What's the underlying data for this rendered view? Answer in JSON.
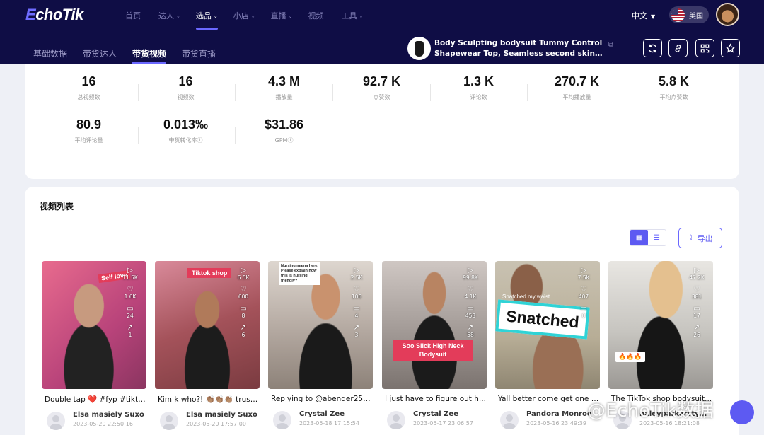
{
  "app": {
    "logo_prefix": "E",
    "logo_rest": "choTik"
  },
  "nav": [
    {
      "label": "首页",
      "caret": ""
    },
    {
      "label": "达人",
      "caret": "⌄"
    },
    {
      "label": "选品",
      "caret": "⌄",
      "active": true
    },
    {
      "label": "小店",
      "caret": "⌄"
    },
    {
      "label": "直播",
      "caret": "⌄"
    },
    {
      "label": "视频",
      "caret": ""
    },
    {
      "label": "工具",
      "caret": "⌄"
    }
  ],
  "header": {
    "language": "中文",
    "region": "美国"
  },
  "subnav": [
    {
      "label": "基础数据"
    },
    {
      "label": "带货达人"
    },
    {
      "label": "带货视频",
      "active": true
    },
    {
      "label": "带货直播"
    }
  ],
  "product": {
    "title_line1": "Body Sculpting bodysuit Tummy Control",
    "title_line2": "Shapewear Top, Seamless second skin high..."
  },
  "toolbar_icons": [
    "refresh-icon",
    "link-icon",
    "qrcode-icon",
    "star-icon"
  ],
  "stats": [
    {
      "value": "16",
      "label": "总视频数"
    },
    {
      "value": "16",
      "label": "视频数"
    },
    {
      "value": "4.3 M",
      "label": "播放量"
    },
    {
      "value": "92.7 K",
      "label": "点赞数"
    },
    {
      "value": "1.3 K",
      "label": "评论数"
    },
    {
      "value": "270.7 K",
      "label": "平均播放量"
    },
    {
      "value": "5.8 K",
      "label": "平均点赞数"
    },
    {
      "value": "80.9",
      "label": "平均评论量"
    },
    {
      "value": "0.013‰",
      "label": "带货转化率ⓘ"
    },
    {
      "value": "$31.86",
      "label": "GPMⓘ"
    }
  ],
  "video_list": {
    "title": "视频列表",
    "export_label": "导出",
    "videos": [
      {
        "title": "Double tap ❤️ #fyp #tikto...",
        "author": "Elsa masiely Suxo",
        "date": "2023-05-20 22:50:16",
        "plays": "11.5K",
        "likes": "1.6K",
        "comments": "24",
        "shares": "1",
        "caption": "Self love"
      },
      {
        "title": "Kim k who?! 👏🏽👏🏽👏🏽 trust...",
        "author": "Elsa masiely Suxo",
        "date": "2023-05-20 17:57:00",
        "plays": "6.5K",
        "likes": "600",
        "comments": "8",
        "shares": "6",
        "caption": "Tiktok shop"
      },
      {
        "title": "Replying to @abender251...",
        "author": "Crystal Zee",
        "date": "2023-05-18 17:15:54",
        "plays": "2.5K",
        "likes": "106",
        "comments": "4",
        "shares": "3",
        "caption": "Nursing mama here. Please explain how this is nursing friendly?"
      },
      {
        "title": "I just have to figure out h...",
        "author": "Crystal Zee",
        "date": "2023-05-17 23:06:57",
        "plays": "99.8K",
        "likes": "4.1K",
        "comments": "453",
        "shares": "58",
        "caption": "Soo Slick High Neck Bodysuit"
      },
      {
        "title": "Yall better come get one o...",
        "author": "Pandora Monroe",
        "date": "2023-05-16 23:49:39",
        "plays": "7.5K",
        "likes": "407",
        "comments": "0",
        "shares": "",
        "caption": "Snatched",
        "caption_small": "Snatched my waist"
      },
      {
        "title": "The TikTok shop bodysuit...",
        "author": "haleyparkersty...",
        "date": "2023-05-16 18:21:08",
        "plays": "47.2K",
        "likes": "381",
        "comments": "17",
        "shares": "26",
        "caption": "🔥🔥🔥"
      }
    ]
  },
  "watermark": "@EchoTik数据"
}
